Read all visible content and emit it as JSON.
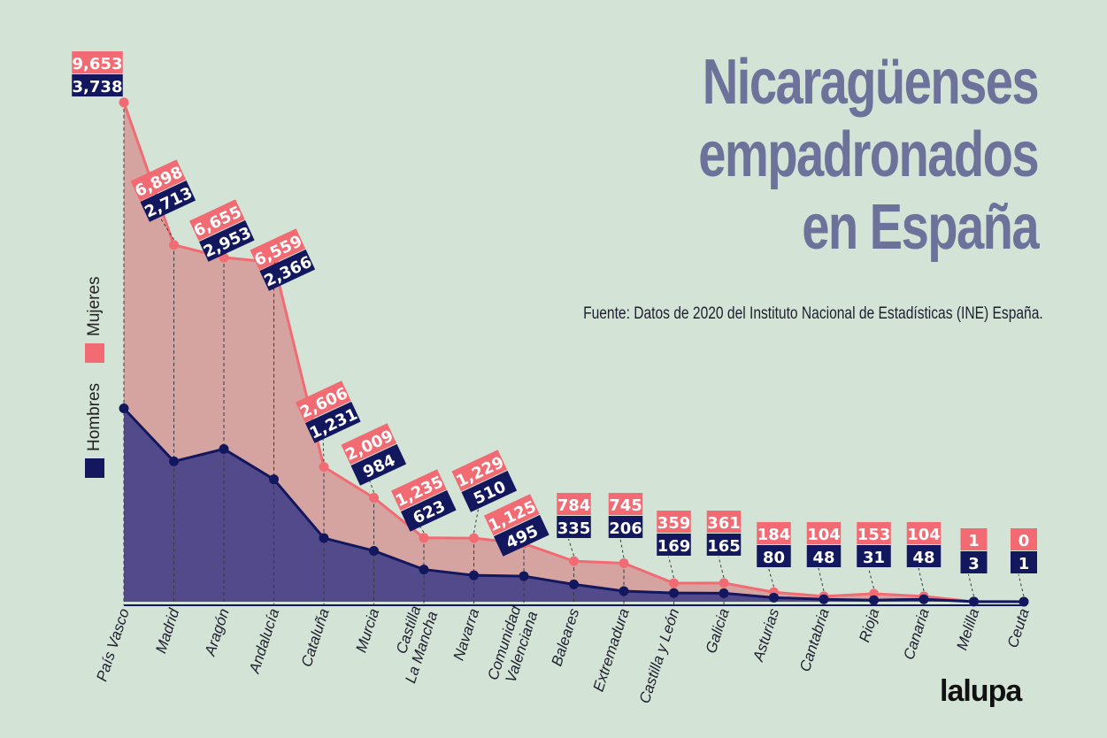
{
  "title": {
    "line1": "Nicaragüenses",
    "line2": "empadronados",
    "line3": "en España"
  },
  "source": "Fuente: Datos de 2020 del Instituto Nacional de Estadísticas (INE) España.",
  "legend": {
    "mujeres": "Mujeres",
    "hombres": "Hombres"
  },
  "logo": "lalupa",
  "colors": {
    "mujeres_line": "#f26b73",
    "mujeres_area": "#d5a4a0",
    "hombres_line": "#12175e",
    "hombres_area": "#534a8c",
    "title": "#6c7299",
    "background": "#d3e4d7"
  },
  "chart_data": {
    "type": "area",
    "categories": [
      "País Vasco",
      "Madrid",
      "Aragón",
      "Andalucía",
      "Cataluña",
      "Murcia",
      "Castilla La Mancha",
      "Navarra",
      "Comunidad Valenciana",
      "Baleares",
      "Extremadura",
      "Castilla y León",
      "Galicia",
      "Asturias",
      "Cantabria",
      "Rioja",
      "Canaria",
      "Melilla",
      "Ceuta"
    ],
    "series": [
      {
        "name": "Mujeres",
        "values": [
          9653,
          6898,
          6655,
          6559,
          2606,
          2009,
          1235,
          1229,
          1125,
          784,
          745,
          359,
          361,
          184,
          104,
          153,
          104,
          1,
          0
        ]
      },
      {
        "name": "Hombres",
        "values": [
          3738,
          2713,
          2953,
          2366,
          1231,
          984,
          623,
          510,
          495,
          335,
          206,
          169,
          165,
          80,
          48,
          31,
          48,
          3,
          1
        ]
      }
    ],
    "mujeres_labels": [
      "9,653",
      "6,898",
      "6,655",
      "6,559",
      "2,606",
      "2,009",
      "1,235",
      "1,229",
      "1,125",
      "784",
      "745",
      "359",
      "361",
      "184",
      "104",
      "153",
      "104",
      "1",
      "0"
    ],
    "hombres_labels": [
      "3,738",
      "2,713",
      "2,953",
      "2,366",
      "1,231",
      "984",
      "623",
      "510",
      "495",
      "335",
      "206",
      "169",
      "165",
      "80",
      "48",
      "31",
      "48",
      "3",
      "1"
    ],
    "ylim": [
      0,
      10000
    ],
    "grid": false,
    "legend_position": "left"
  }
}
